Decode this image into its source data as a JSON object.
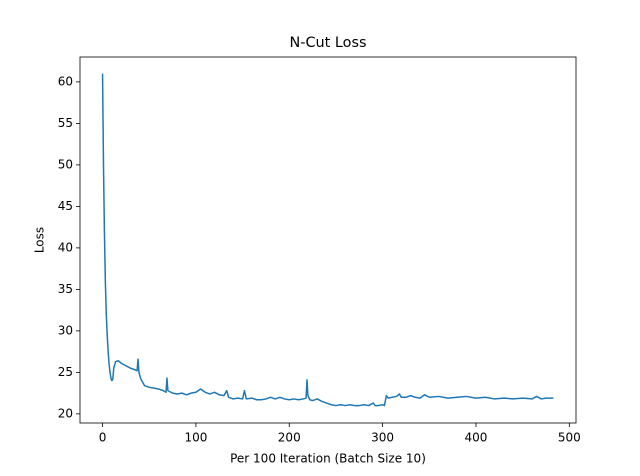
{
  "chart_data": {
    "type": "line",
    "title": "N-Cut Loss",
    "x_label": "Per 100 Iteration (Batch Size 10)",
    "y_label": "Loss",
    "x": [
      0,
      1,
      2,
      3,
      4,
      5,
      6,
      7,
      8,
      9,
      10,
      11,
      12,
      14,
      17,
      20,
      25,
      30,
      35,
      37,
      38,
      39,
      41,
      45,
      50,
      55,
      60,
      65,
      68,
      69,
      70,
      75,
      80,
      85,
      90,
      95,
      100,
      105,
      110,
      115,
      120,
      125,
      130,
      133,
      135,
      140,
      145,
      150,
      152,
      154,
      160,
      165,
      170,
      175,
      180,
      185,
      190,
      195,
      200,
      205,
      210,
      215,
      218,
      219,
      220,
      222,
      225,
      230,
      235,
      240,
      245,
      250,
      255,
      260,
      265,
      270,
      275,
      280,
      285,
      290,
      292,
      295,
      300,
      302,
      304,
      306,
      310,
      315,
      318,
      320,
      325,
      330,
      335,
      340,
      345,
      350,
      360,
      370,
      380,
      390,
      400,
      410,
      420,
      430,
      440,
      450,
      460,
      465,
      470,
      475,
      483
    ],
    "values": [
      61,
      50,
      42,
      36,
      32,
      29.5,
      27.5,
      26,
      25,
      24.3,
      24,
      24.2,
      25.5,
      26.3,
      26.4,
      26.1,
      25.8,
      25.5,
      25.3,
      25.2,
      26.6,
      25,
      24.2,
      23.4,
      23.2,
      23.1,
      23,
      22.8,
      22.6,
      24.3,
      22.8,
      22.5,
      22.4,
      22.5,
      22.3,
      22.5,
      22.6,
      23,
      22.6,
      22.4,
      22.6,
      22.3,
      22.2,
      22.8,
      22,
      21.8,
      21.9,
      21.8,
      22.8,
      21.8,
      21.9,
      21.7,
      21.7,
      21.8,
      22,
      21.8,
      22,
      21.8,
      21.7,
      21.8,
      21.7,
      21.8,
      21.9,
      24.1,
      22.2,
      21.7,
      21.6,
      21.8,
      21.5,
      21.3,
      21.1,
      21,
      21.1,
      21,
      21.1,
      21,
      21,
      21.1,
      21,
      21.3,
      21,
      21,
      21.1,
      21,
      22.2,
      21.9,
      22,
      22.1,
      22.4,
      22,
      22,
      22.2,
      22,
      21.9,
      22.3,
      22,
      22.1,
      21.9,
      22,
      22.1,
      21.9,
      22,
      21.8,
      21.9,
      21.8,
      21.9,
      21.8,
      22.1,
      21.8,
      21.9,
      21.9
    ],
    "color": "#1f77b4",
    "xlim": [
      -24.15,
      507.15
    ],
    "xticks": [
      0,
      100,
      200,
      300,
      400,
      500
    ],
    "ylim": [
      18.9,
      63.0
    ],
    "yticks": [
      20,
      25,
      30,
      35,
      40,
      45,
      50,
      55,
      60
    ]
  }
}
